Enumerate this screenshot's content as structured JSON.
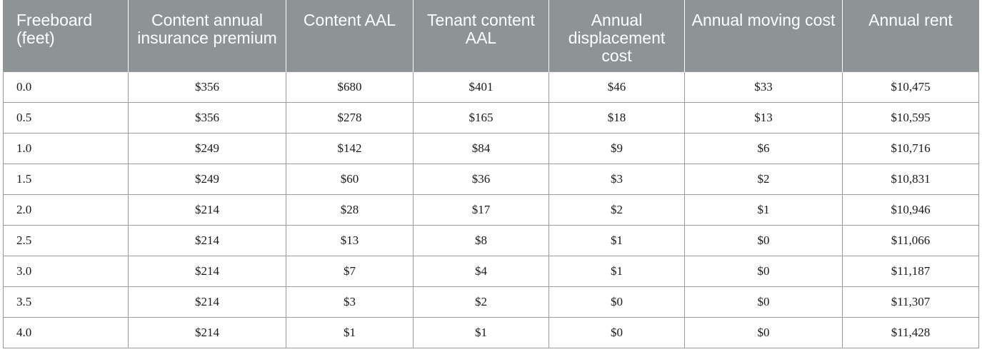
{
  "table": {
    "headers": [
      "Freeboard (feet)",
      "Content annual insurance premium",
      "Content AAL",
      "Tenant content AAL",
      "Annual displacement cost",
      "Annual moving cost",
      "Annual rent"
    ],
    "rows": [
      [
        "0.0",
        "$356",
        "$680",
        "$401",
        "$46",
        "$33",
        "$10,475"
      ],
      [
        "0.5",
        "$356",
        "$278",
        "$165",
        "$18",
        "$13",
        "$10,595"
      ],
      [
        "1.0",
        "$249",
        "$142",
        "$84",
        "$9",
        "$6",
        "$10,716"
      ],
      [
        "1.5",
        "$249",
        "$60",
        "$36",
        "$3",
        "$2",
        "$10,831"
      ],
      [
        "2.0",
        "$214",
        "$28",
        "$17",
        "$2",
        "$1",
        "$10,946"
      ],
      [
        "2.5",
        "$214",
        "$13",
        "$8",
        "$1",
        "$0",
        "$11,066"
      ],
      [
        "3.0",
        "$214",
        "$7",
        "$4",
        "$1",
        "$0",
        "$11,187"
      ],
      [
        "3.5",
        "$214",
        "$3",
        "$2",
        "$0",
        "$0",
        "$11,307"
      ],
      [
        "4.0",
        "$214",
        "$1",
        "$1",
        "$0",
        "$0",
        "$11,428"
      ]
    ]
  },
  "colors": {
    "header_background": "#8e9396",
    "header_text": "#ffffff",
    "cell_border": "#9a9a9a"
  }
}
